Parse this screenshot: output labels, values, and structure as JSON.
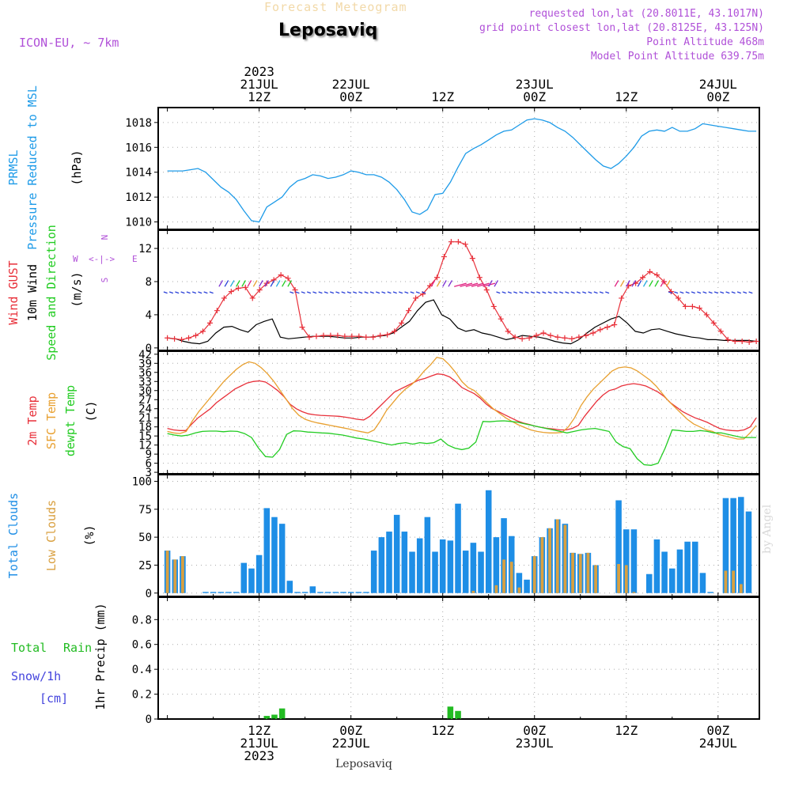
{
  "header": {
    "subtitle": "Forecast Meteogram",
    "title": "Leposaviq",
    "model": "ICON-EU, ~ 7km",
    "requested": "requested lon,lat (20.8011E, 43.1017N)",
    "grid_point": "grid point closest lon,lat (20.8125E, 43.125N)",
    "point_altitude": "Point Altitude 468m",
    "model_altitude": "Model Point Altitude 639.75m",
    "footer": "Leposaviq",
    "credit": "by Angel"
  },
  "colors": {
    "pressure": "#1e9be8",
    "gust": "#e8303a",
    "wind": "#000000",
    "sfc": "#e8a030",
    "dewpt": "#22cc22",
    "clouds": "#1e8ee6",
    "low": "#d9a040",
    "rain": "#22bb22",
    "snow": "#4444dd",
    "purple": "#b050d8"
  },
  "time_axis": {
    "top_labels": [
      {
        "lines": [
          "2023",
          "21JUL",
          "12Z"
        ],
        "t": 12
      },
      {
        "lines": [
          "22JUL",
          "00Z"
        ],
        "t": 24
      },
      {
        "lines": [
          "12Z"
        ],
        "t": 36
      },
      {
        "lines": [
          "23JUL",
          "00Z"
        ],
        "t": 48
      },
      {
        "lines": [
          "12Z"
        ],
        "t": 60
      },
      {
        "lines": [
          "24JUL",
          "00Z"
        ],
        "t": 72
      }
    ],
    "bottom_labels": [
      {
        "lines": [
          "12Z",
          "21JUL",
          "2023"
        ],
        "t": 12
      },
      {
        "lines": [
          "00Z",
          "22JUL"
        ],
        "t": 24
      },
      {
        "lines": [
          "12Z"
        ],
        "t": 36
      },
      {
        "lines": [
          "00Z",
          "23JUL"
        ],
        "t": 48
      },
      {
        "lines": [
          "12Z"
        ],
        "t": 60
      },
      {
        "lines": [
          "00Z",
          "24JUL"
        ],
        "t": 72
      }
    ]
  },
  "panels": {
    "pressure": {
      "label1": "PRMSL",
      "label2": "Pressure Reduced to MSL",
      "unit": "(hPa)",
      "ticks": [
        "1010",
        "1012",
        "1014",
        "1016",
        "1018"
      ]
    },
    "wind": {
      "label_gust": "Wind GUST",
      "label_wind": "10m Wind",
      "label_dir": "Speed and Direction",
      "unit": "(m/s)",
      "compass_w": "W",
      "compass_e": "E",
      "compass_n": "N",
      "compass_s": "S",
      "compass_arrows": "<-|->",
      "ticks": [
        "0",
        "4",
        "8",
        "12"
      ]
    },
    "temp": {
      "label_2m": "2m Temp",
      "label_sfc": "SFC Temp",
      "label_dew": "dewpt Temp",
      "unit": "(C)",
      "ticks": [
        "3",
        "6",
        "9",
        "12",
        "15",
        "18",
        "21",
        "24",
        "27",
        "30",
        "33",
        "36",
        "39",
        "42"
      ]
    },
    "clouds": {
      "label_total": "Total Clouds",
      "label_low": "Low Clouds",
      "unit": "(%)",
      "ticks": [
        "0",
        "25",
        "50",
        "75",
        "100"
      ]
    },
    "precip": {
      "label_total": "Total",
      "label_rain": "Rain",
      "label_snow": "Snow/1h",
      "label_cm": "[cm]",
      "unit": "1hr Precip (mm)",
      "ticks": [
        "0",
        "0.2",
        "0.4",
        "0.6",
        "0.8"
      ]
    }
  },
  "chart_data": [
    {
      "type": "line",
      "title": "PRMSL Pressure Reduced to MSL",
      "ylabel": "(hPa)",
      "x_unit": "hours since 2023-07-21 00Z",
      "ylim": [
        1009.4,
        1019.2
      ],
      "series": [
        {
          "name": "PRMSL",
          "x": [
            0,
            2,
            3,
            4,
            5,
            6,
            7,
            8,
            9,
            10,
            11,
            12,
            13,
            14,
            15,
            16,
            17,
            18,
            19,
            20,
            21,
            22,
            23,
            24,
            25,
            26,
            27,
            28,
            29,
            30,
            31,
            32,
            33,
            34,
            35,
            36,
            37,
            38,
            39,
            40,
            41,
            42,
            43,
            44,
            45,
            46,
            47,
            48,
            49,
            50,
            51,
            52,
            53,
            54,
            55,
            56,
            57,
            58,
            59,
            60,
            61,
            62,
            63,
            64,
            65,
            66,
            67,
            68,
            69,
            70,
            71,
            72,
            73,
            74,
            75,
            76,
            77
          ],
          "values": [
            1014.1,
            1014.1,
            1014.2,
            1014.3,
            1014.0,
            1013.4,
            1012.8,
            1012.4,
            1011.8,
            1010.9,
            1010.1,
            1010.0,
            1011.2,
            1011.6,
            1012.0,
            1012.8,
            1013.3,
            1013.5,
            1013.8,
            1013.7,
            1013.5,
            1013.6,
            1013.8,
            1014.1,
            1014.0,
            1013.8,
            1013.8,
            1013.6,
            1013.2,
            1012.6,
            1011.8,
            1010.8,
            1010.6,
            1011.0,
            1012.2,
            1012.3,
            1013.2,
            1014.4,
            1015.5,
            1015.9,
            1016.2,
            1016.6,
            1017.0,
            1017.3,
            1017.4,
            1017.8,
            1018.2,
            1018.3,
            1018.2,
            1018.0,
            1017.6,
            1017.3,
            1016.8,
            1016.2,
            1015.6,
            1015.0,
            1014.5,
            1014.3,
            1014.7,
            1015.3,
            1016.0,
            1016.9,
            1017.3,
            1017.4,
            1017.3,
            1017.6,
            1017.3,
            1017.3,
            1017.5,
            1017.9,
            1017.8,
            1017.7,
            1017.6,
            1017.5,
            1017.4,
            1017.3,
            1017.3
          ]
        }
      ]
    },
    {
      "type": "line",
      "title": "Wind GUST / 10m Wind Speed",
      "ylabel": "(m/s)",
      "x_unit": "hours since 2023-07-21 00Z",
      "ylim": [
        0,
        14
      ],
      "series": [
        {
          "name": "Wind GUST",
          "values": [
            1.2,
            1.1,
            1.0,
            1.2,
            1.5,
            2.0,
            3.0,
            4.5,
            6.0,
            6.8,
            7.2,
            7.3,
            6.0,
            7.0,
            7.8,
            8.2,
            8.8,
            8.4,
            7.0,
            2.5,
            1.3,
            1.4,
            1.5,
            1.5,
            1.5,
            1.4,
            1.4,
            1.4,
            1.3,
            1.3,
            1.5,
            1.6,
            2.0,
            3.0,
            4.5,
            6.0,
            6.5,
            7.5,
            8.5,
            11.0,
            12.8,
            12.8,
            12.5,
            10.8,
            8.5,
            7.0,
            5.0,
            3.5,
            2.0,
            1.3,
            1.1,
            1.2,
            1.5,
            1.8,
            1.5,
            1.3,
            1.2,
            1.1,
            1.3,
            1.5,
            1.8,
            2.2,
            2.5,
            2.8,
            6.0,
            7.5,
            7.8,
            8.5,
            9.2,
            8.8,
            8.0,
            6.8,
            6.0,
            5.0,
            5.0,
            4.8,
            4.0,
            3.0,
            2.0,
            1.0,
            0.8,
            0.8,
            0.7,
            0.8
          ]
        },
        {
          "name": "10m Wind",
          "values": [
            1.2,
            1.1,
            0.8,
            0.6,
            0.5,
            0.8,
            1.8,
            2.5,
            2.6,
            2.2,
            1.9,
            2.8,
            3.2,
            3.5,
            1.3,
            1.1,
            1.2,
            1.3,
            1.4,
            1.4,
            1.4,
            1.3,
            1.2,
            1.2,
            1.3,
            1.3,
            1.4,
            1.5,
            1.8,
            2.5,
            3.2,
            4.5,
            5.5,
            5.8,
            4.0,
            3.5,
            2.4,
            2.0,
            2.2,
            1.8,
            1.6,
            1.3,
            1.0,
            1.2,
            1.5,
            1.4,
            1.3,
            1.1,
            0.8,
            0.6,
            0.5,
            1.0,
            1.8,
            2.5,
            3.0,
            3.5,
            3.8,
            3.0,
            2.0,
            1.8,
            2.2,
            2.3,
            2.0,
            1.7,
            1.5,
            1.3,
            1.2,
            1.0,
            1.0,
            0.9,
            0.9,
            0.9,
            0.9,
            0.8
          ]
        }
      ]
    },
    {
      "type": "line",
      "title": "2m Temp / SFC Temp / dewpt Temp",
      "ylabel": "(C)",
      "x_unit": "hours since 2023-07-21 00Z",
      "ylim": [
        3,
        42
      ],
      "series": [
        {
          "name": "2m Temp",
          "values": [
            17.5,
            17.0,
            16.8,
            16.8,
            19.0,
            21.0,
            22.5,
            24.0,
            26.0,
            27.5,
            29.0,
            30.5,
            31.5,
            32.5,
            33.0,
            33.2,
            32.8,
            31.5,
            30.0,
            28.0,
            25.5,
            24.0,
            23.0,
            22.3,
            22.0,
            21.8,
            21.7,
            21.6,
            21.5,
            21.2,
            20.9,
            20.5,
            20.3,
            21.5,
            23.5,
            25.5,
            27.5,
            29.5,
            30.5,
            31.5,
            32.5,
            33.5,
            34.0,
            34.8,
            35.5,
            35.3,
            34.5,
            33.0,
            31.0,
            30.0,
            29.0,
            27.5,
            25.5,
            24.0,
            23.0,
            22.0,
            21.0,
            20.0,
            19.3,
            18.8,
            18.2,
            17.8,
            17.5,
            17.3,
            17.0,
            17.0,
            17.5,
            18.5,
            21.5,
            24.0,
            26.5,
            28.5,
            30.0,
            30.5,
            31.5,
            32.0,
            32.3,
            32.0,
            31.5,
            30.5,
            29.5,
            28.0,
            26.0,
            24.5,
            23.0,
            22.0,
            21.0,
            20.3,
            19.5,
            18.5,
            17.5,
            17.0,
            16.8,
            16.7,
            17.0,
            18.0,
            21.0
          ]
        },
        {
          "name": "SFC Temp",
          "values": [
            16.5,
            16.0,
            15.8,
            16.5,
            20.0,
            23.0,
            25.5,
            28.0,
            30.5,
            33.0,
            35.0,
            37.0,
            38.5,
            39.5,
            39.0,
            37.5,
            35.5,
            33.0,
            30.0,
            27.0,
            24.0,
            21.8,
            20.5,
            19.8,
            19.3,
            18.9,
            18.5,
            18.1,
            17.7,
            17.3,
            16.8,
            16.4,
            16.0,
            17.0,
            20.0,
            23.5,
            26.0,
            28.5,
            30.5,
            32.0,
            34.0,
            36.5,
            38.5,
            41.0,
            40.5,
            38.5,
            36.0,
            33.0,
            31.0,
            30.0,
            28.0,
            26.0,
            24.0,
            22.5,
            21.0,
            19.8,
            18.7,
            17.8,
            17.0,
            16.5,
            16.2,
            16.0,
            16.0,
            16.2,
            18.0,
            21.0,
            25.0,
            28.0,
            30.5,
            32.5,
            34.5,
            36.5,
            37.5,
            37.8,
            37.5,
            36.5,
            35.0,
            33.5,
            31.5,
            29.0,
            26.5,
            24.5,
            22.5,
            20.5,
            19.0,
            18.0,
            17.0,
            16.5,
            15.5,
            15.0,
            14.5,
            14.0,
            14.0,
            16.0,
            18.5
          ]
        },
        {
          "name": "dewpt Temp",
          "values": [
            15.8,
            15.3,
            15.0,
            15.3,
            16.0,
            16.5,
            16.6,
            16.6,
            16.4,
            16.6,
            16.5,
            15.8,
            14.5,
            11.0,
            8.2,
            8.0,
            10.5,
            15.5,
            16.7,
            16.6,
            16.3,
            16.2,
            16.0,
            15.9,
            15.6,
            15.3,
            14.8,
            14.3,
            14.0,
            13.5,
            13.0,
            12.5,
            12.0,
            12.5,
            12.8,
            12.3,
            12.8,
            12.5,
            12.8,
            14.0,
            12.0,
            11.0,
            10.5,
            11.0,
            13.0,
            19.8,
            19.7,
            19.9,
            20.0,
            19.8,
            19.5,
            19.0,
            18.5,
            18.0,
            17.5,
            17.0,
            16.5,
            16.0,
            16.5,
            17.0,
            17.3,
            17.5,
            17.0,
            16.5,
            13.0,
            11.5,
            10.8,
            7.5,
            5.5,
            5.3,
            6.0,
            11.0,
            17.0,
            16.8,
            16.5,
            16.5,
            16.8,
            16.5,
            16.0,
            16.0,
            15.5,
            15.0,
            14.5,
            14.5,
            14.5
          ]
        }
      ]
    },
    {
      "type": "bar",
      "title": "Total Clouds / Low Clouds",
      "ylabel": "(%)",
      "x_unit": "hours since 2023-07-21 00Z (bars every 1h from t=0)",
      "ylim": [
        0,
        100
      ],
      "series": [
        {
          "name": "Total Clouds",
          "values": [
            38,
            30,
            33,
            0,
            0,
            1,
            1,
            1,
            1,
            1,
            27,
            22,
            34,
            76,
            68,
            62,
            11,
            1,
            1,
            6,
            1,
            1,
            1,
            1,
            1,
            1,
            1,
            38,
            50,
            55,
            70,
            55,
            37,
            49,
            68,
            37,
            48,
            47,
            80,
            38,
            45,
            37,
            92,
            50,
            67,
            51,
            18,
            12,
            33,
            50,
            58,
            66,
            62,
            36,
            35,
            36,
            25,
            0,
            0,
            83,
            57,
            57,
            0,
            17,
            48,
            37,
            22,
            39,
            46,
            46,
            18,
            1,
            0,
            85,
            85,
            86,
            73
          ]
        },
        {
          "name": "Low Clouds",
          "values": [
            38,
            30,
            33,
            0,
            0,
            0,
            0,
            0,
            0,
            0,
            0,
            0,
            0,
            0,
            0,
            0,
            0,
            0,
            0,
            0,
            0,
            0,
            0,
            0,
            0,
            0,
            0,
            0,
            0,
            0,
            0,
            0,
            0,
            0,
            0,
            0,
            0,
            0,
            0,
            0,
            2,
            0,
            0,
            7,
            30,
            28,
            5,
            0,
            33,
            50,
            58,
            66,
            61,
            36,
            35,
            36,
            25,
            0,
            0,
            26,
            25,
            1,
            0,
            0,
            0,
            0,
            0,
            0,
            0,
            0,
            0,
            0,
            0,
            20,
            20,
            8,
            0
          ]
        }
      ]
    },
    {
      "type": "bar",
      "title": "1hr Precip",
      "ylabel": "1hr Precip (mm)",
      "x_unit": "hours since 2023-07-21 00Z",
      "ylim": [
        0,
        1.0
      ],
      "series": [
        {
          "name": "Total Rain",
          "x": [
            13,
            14,
            15,
            37,
            38
          ],
          "values": [
            0.025,
            0.035,
            0.085,
            0.1,
            0.065
          ]
        }
      ]
    }
  ]
}
